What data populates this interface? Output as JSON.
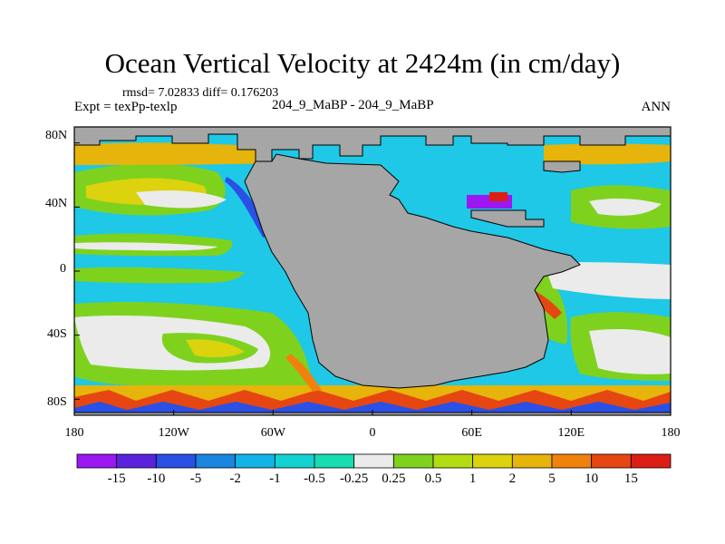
{
  "title": "Ocean Vertical Velocity at 2424m (in cm/day)",
  "stats": "rmsd= 7.02833 diff= 0.176203",
  "experiment": "Expt = texPp-texlp",
  "subtitle": "204_9_MaBP - 204_9_MaBP",
  "season": "ANN",
  "axes": {
    "lat_labels": [
      "80N",
      "40N",
      "0",
      "40S",
      "80S"
    ],
    "lon_labels": [
      "180",
      "120W",
      "60W",
      "0",
      "60E",
      "120E",
      "180"
    ],
    "lat_range": [
      -90,
      90
    ],
    "lon_range": [
      -180,
      180
    ]
  },
  "colorbar": {
    "labels": [
      "-15",
      "-10",
      "-5",
      "-2",
      "-1",
      "-0.5",
      "-0.25",
      "0.25",
      "0.5",
      "1",
      "2",
      "5",
      "10",
      "15"
    ],
    "colors": [
      "#9b18f2",
      "#5a22dd",
      "#2a50e6",
      "#1a86e0",
      "#12b4e8",
      "#14d2d2",
      "#18dcb2",
      "#ebebeb",
      "#7ed21e",
      "#b4dc14",
      "#dcd20e",
      "#e6b40a",
      "#f0820c",
      "#e64612",
      "#dc1e14"
    ]
  },
  "colors": {
    "land": "#a6a6a6",
    "missing": "#ebebeb"
  }
}
